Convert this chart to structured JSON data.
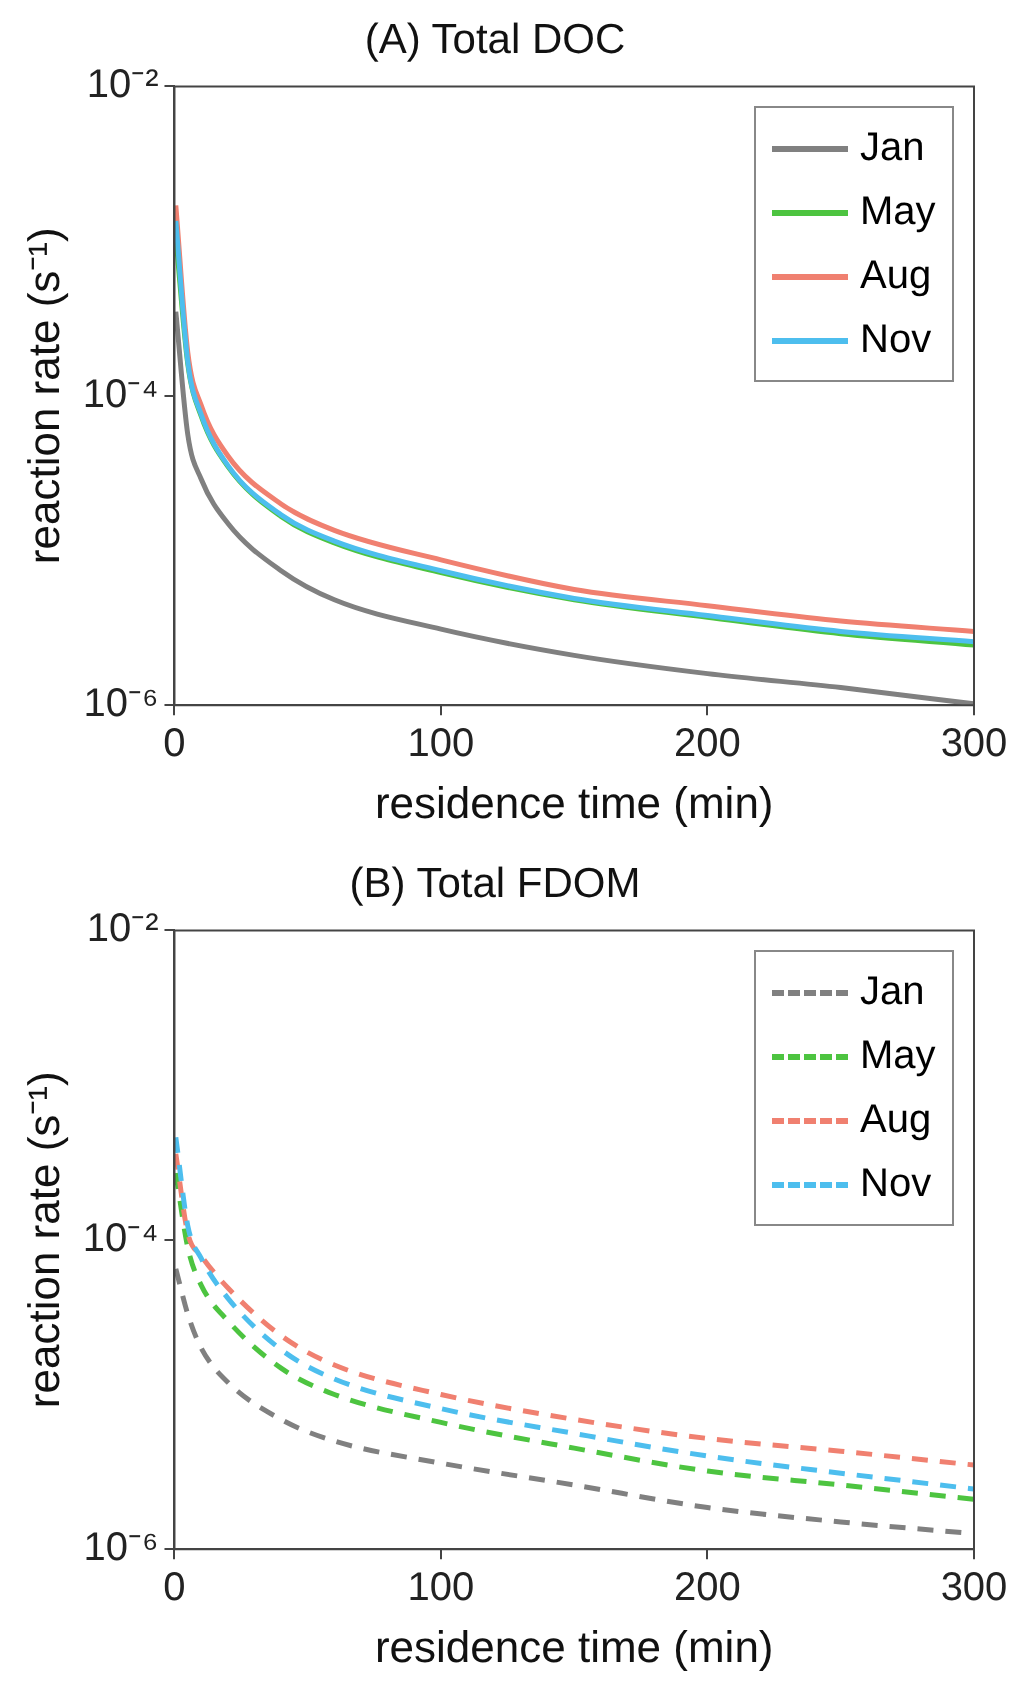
{
  "chart_data": [
    {
      "type": "line",
      "title": "(A) Total DOC",
      "xlabel": "residence time (min)",
      "ylabel": "reaction rate (s⁻¹)",
      "log": "y",
      "grid": false,
      "legend": "top right",
      "line_style": "solid",
      "marker": "none",
      "x": [
        0.5,
        5,
        10,
        20,
        40,
        60,
        100,
        150,
        200,
        250,
        300
      ],
      "xlim": [
        0,
        300
      ],
      "xticks": [
        0,
        100,
        200,
        300
      ],
      "ylim": [
        1e-06,
        0.01
      ],
      "yticks": [
        {
          "value": 0.01,
          "label": "10⁻²"
        },
        {
          "value": 0.0001,
          "label": "10⁻⁴"
        },
        {
          "value": 1e-06,
          "label": "10⁻⁶"
        }
      ],
      "series": [
        {
          "name": "Jan",
          "color": "#808080",
          "values": [
            0.00035,
            5.6e-05,
            2.9e-05,
            1.5e-05,
            7.4e-06,
            4.8e-06,
            3.1e-06,
            2.1e-06,
            1.6e-06,
            1.3e-06,
            1.02e-06
          ]
        },
        {
          "name": "May",
          "color": "#4dc440",
          "values": [
            0.00107,
            0.00016,
            7.4e-05,
            3.5e-05,
            1.66e-05,
            1.12e-05,
            7.2e-06,
            4.8e-06,
            3.7e-06,
            2.9e-06,
            2.45e-06
          ]
        },
        {
          "name": "Aug",
          "color": "#f08070",
          "values": [
            0.0017,
            0.00019,
            8.7e-05,
            4.1e-05,
            2e-05,
            1.35e-05,
            8.7e-06,
            5.6e-06,
            4.4e-06,
            3.5e-06,
            3e-06
          ]
        },
        {
          "name": "Nov",
          "color": "#4dbeee",
          "values": [
            0.00135,
            0.000166,
            7.6e-05,
            3.55e-05,
            1.7e-05,
            1.15e-05,
            7.4e-06,
            4.9e-06,
            3.8e-06,
            3e-06,
            2.57e-06
          ]
        }
      ]
    },
    {
      "type": "line",
      "title": "(B) Total FDOM",
      "xlabel": "residence time (min)",
      "ylabel": "reaction rate (s⁻¹)",
      "log": "y",
      "grid": false,
      "legend": "top right",
      "line_style": "dashed",
      "marker": "none",
      "x": [
        0.5,
        5,
        10,
        20,
        40,
        60,
        100,
        150,
        200,
        250,
        300
      ],
      "xlim": [
        0,
        300
      ],
      "xticks": [
        0,
        100,
        200,
        300
      ],
      "ylim": [
        1e-06,
        0.01
      ],
      "yticks": [
        {
          "value": 0.01,
          "label": "10⁻²"
        },
        {
          "value": 0.0001,
          "label": "10⁻⁴"
        },
        {
          "value": 1e-06,
          "label": "10⁻⁶"
        }
      ],
      "series": [
        {
          "name": "Jan",
          "color": "#808080",
          "values": [
            6.5e-05,
            3.3e-05,
            2e-05,
            1.2e-05,
            6.9e-06,
            5e-06,
            3.6e-06,
            2.6e-06,
            1.86e-06,
            1.5e-06,
            1.26e-06
          ]
        },
        {
          "name": "May",
          "color": "#4dc440",
          "values": [
            0.00027,
            8.9e-05,
            5.1e-05,
            3e-05,
            1.48e-05,
            1e-05,
            6.6e-06,
            4.5e-06,
            3.2e-06,
            2.6e-06,
            2.1e-06
          ]
        },
        {
          "name": "Aug",
          "color": "#f08070",
          "values": [
            0.00036,
            0.00011,
            7.9e-05,
            4.9e-05,
            2.4e-05,
            1.55e-05,
            1e-05,
            6.9e-06,
            5.2e-06,
            4.3e-06,
            3.5e-06
          ]
        },
        {
          "name": "Nov",
          "color": "#4dbeee",
          "values": [
            0.00046,
            0.000123,
            7.6e-05,
            4.2e-05,
            1.95e-05,
            1.26e-05,
            8.1e-06,
            5.6e-06,
            4e-06,
            3.1e-06,
            2.45e-06
          ]
        }
      ]
    }
  ]
}
